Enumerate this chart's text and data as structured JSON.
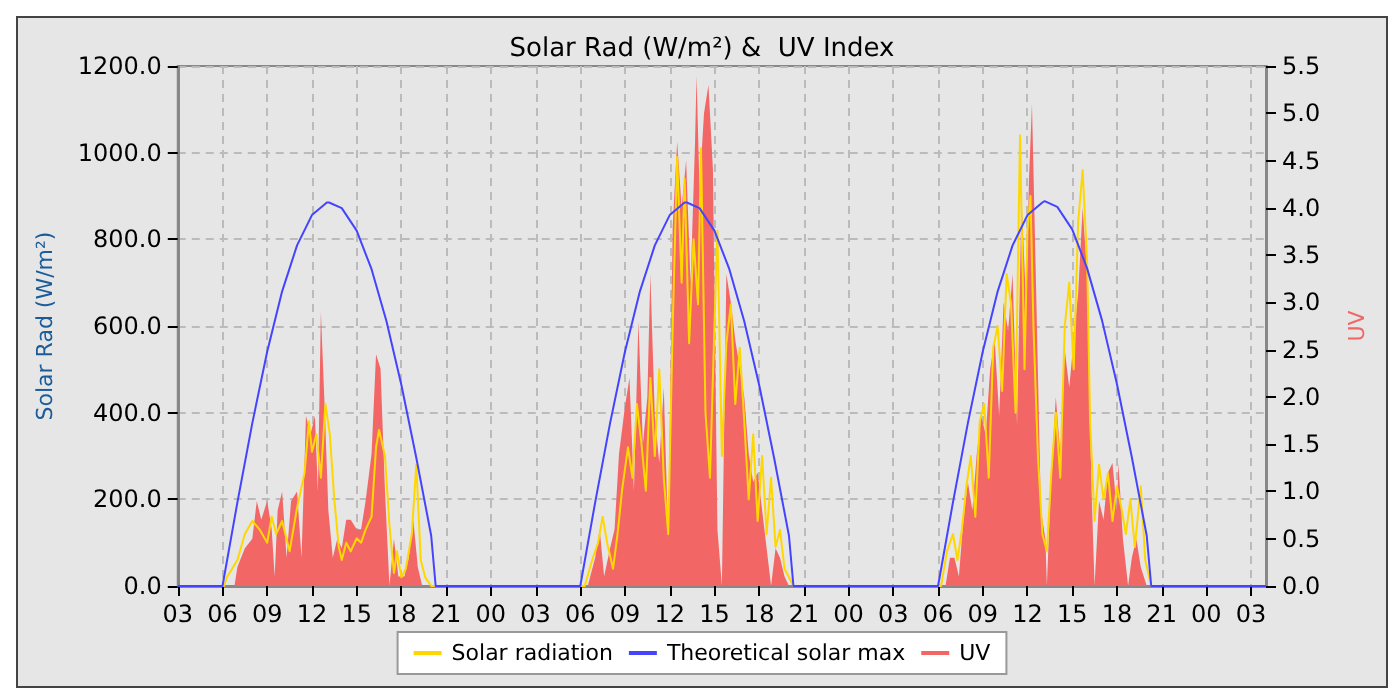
{
  "chart_data": {
    "type": "line",
    "title": "Solar Rad (W/m²) &  UV Index",
    "ylabel": "Solar Rad (W/m²)",
    "y2label": "UV",
    "xlim": [
      3,
      76
    ],
    "xticks": [
      {
        "value": 3,
        "label": "03"
      },
      {
        "value": 6,
        "label": "06"
      },
      {
        "value": 9,
        "label": "09"
      },
      {
        "value": 12,
        "label": "12"
      },
      {
        "value": 15,
        "label": "15"
      },
      {
        "value": 18,
        "label": "18"
      },
      {
        "value": 21,
        "label": "21"
      },
      {
        "value": 24,
        "label": "00"
      },
      {
        "value": 27,
        "label": "03"
      },
      {
        "value": 30,
        "label": "06"
      },
      {
        "value": 33,
        "label": "09"
      },
      {
        "value": 36,
        "label": "12"
      },
      {
        "value": 39,
        "label": "15"
      },
      {
        "value": 42,
        "label": "18"
      },
      {
        "value": 45,
        "label": "21"
      },
      {
        "value": 48,
        "label": "00"
      },
      {
        "value": 51,
        "label": "03"
      },
      {
        "value": 54,
        "label": "06"
      },
      {
        "value": 57,
        "label": "09"
      },
      {
        "value": 60,
        "label": "12"
      },
      {
        "value": 63,
        "label": "15"
      },
      {
        "value": 66,
        "label": "18"
      },
      {
        "value": 69,
        "label": "21"
      },
      {
        "value": 72,
        "label": "00"
      },
      {
        "value": 75,
        "label": "03"
      }
    ],
    "ylim": [
      0,
      1200
    ],
    "yticks": [
      {
        "value": 0,
        "label": "0.0"
      },
      {
        "value": 200,
        "label": "200.0"
      },
      {
        "value": 400,
        "label": "400.0"
      },
      {
        "value": 600,
        "label": "600.0"
      },
      {
        "value": 800,
        "label": "800.0"
      },
      {
        "value": 1000,
        "label": "1000.0"
      },
      {
        "value": 1200,
        "label": "1200.0"
      }
    ],
    "y2lim": [
      0,
      5.5
    ],
    "y2ticks": [
      {
        "value": 0,
        "label": "0.0"
      },
      {
        "value": 0.5,
        "label": "0.5"
      },
      {
        "value": 1,
        "label": "1.0"
      },
      {
        "value": 1.5,
        "label": "1.5"
      },
      {
        "value": 2,
        "label": "2.0"
      },
      {
        "value": 2.5,
        "label": "2.5"
      },
      {
        "value": 3,
        "label": "3.0"
      },
      {
        "value": 3.5,
        "label": "3.5"
      },
      {
        "value": 4,
        "label": "4.0"
      },
      {
        "value": 4.5,
        "label": "4.5"
      },
      {
        "value": 5,
        "label": "5.0"
      },
      {
        "value": 5.5,
        "label": "5.5"
      }
    ],
    "grid": true,
    "legend": "bottom",
    "marker": "none",
    "series": [
      {
        "name": "Solar radiation",
        "color": "#ffd700",
        "x": [
          3,
          6.1,
          6.3,
          7,
          7.5,
          8,
          8.5,
          9,
          9.3,
          9.6,
          10,
          10.5,
          11,
          11.5,
          11.8,
          12,
          12.3,
          12.6,
          12.9,
          13.2,
          13.5,
          13.8,
          14,
          14.3,
          14.6,
          15,
          15.3,
          15.6,
          16,
          16.3,
          16.5,
          16.9,
          17.2,
          17.5,
          17.7,
          18,
          18.3,
          18.7,
          19,
          19.3,
          19.6,
          20,
          30.3,
          30.8,
          31.2,
          31.5,
          31.8,
          32.2,
          32.5,
          32.8,
          33.2,
          33.5,
          33.8,
          34.1,
          34.4,
          34.7,
          35,
          35.3,
          35.6,
          35.9,
          36.2,
          36.5,
          36.8,
          37,
          37.3,
          37.6,
          37.9,
          38.1,
          38.4,
          38.7,
          39,
          39.2,
          39.5,
          39.8,
          40.1,
          40.4,
          40.7,
          41,
          41.3,
          41.6,
          41.9,
          42.2,
          42.5,
          42.8,
          43.1,
          43.4,
          43.7,
          44,
          44.3,
          54.2,
          54.6,
          55,
          55.3,
          55.6,
          55.9,
          56.2,
          56.5,
          56.8,
          57.1,
          57.4,
          57.7,
          58,
          58.3,
          58.6,
          58.9,
          59.2,
          59.5,
          59.8,
          60,
          60.2,
          60.4,
          60.7,
          61,
          61.3,
          61.6,
          61.9,
          62.2,
          62.5,
          62.8,
          63.1,
          63.4,
          63.7,
          64,
          64.2,
          64.5,
          64.8,
          65.1,
          65.4,
          65.7,
          66,
          66.3,
          66.6,
          66.9,
          67.2,
          67.6,
          67.9,
          68.3,
          76
        ],
        "values": [
          0,
          0,
          20,
          60,
          120,
          150,
          130,
          100,
          160,
          120,
          150,
          80,
          180,
          260,
          380,
          310,
          350,
          250,
          420,
          350,
          200,
          90,
          60,
          100,
          80,
          110,
          100,
          130,
          160,
          320,
          360,
          300,
          140,
          30,
          80,
          20,
          40,
          120,
          280,
          60,
          20,
          0,
          0,
          60,
          100,
          160,
          100,
          40,
          120,
          220,
          320,
          250,
          420,
          330,
          220,
          480,
          300,
          500,
          250,
          120,
          600,
          990,
          700,
          940,
          560,
          800,
          650,
          1010,
          400,
          250,
          600,
          820,
          300,
          560,
          650,
          420,
          550,
          380,
          200,
          350,
          150,
          300,
          120,
          250,
          90,
          130,
          40,
          20,
          0,
          0,
          80,
          120,
          60,
          130,
          230,
          300,
          160,
          380,
          420,
          250,
          550,
          600,
          450,
          720,
          650,
          400,
          1040,
          500,
          820,
          900,
          600,
          300,
          120,
          80,
          260,
          400,
          250,
          600,
          700,
          500,
          840,
          960,
          750,
          380,
          150,
          280,
          200,
          260,
          150,
          230,
          180,
          120,
          200,
          90,
          230,
          60,
          0,
          0
        ]
      },
      {
        "name": "Theoretical solar max",
        "color": "#4444ff",
        "x": [
          3,
          6,
          7,
          8,
          9,
          10,
          11,
          12,
          13,
          13.15,
          14,
          15,
          16,
          17,
          18,
          19,
          20,
          20.3,
          30,
          31,
          32,
          33,
          34,
          35,
          36,
          37,
          37.15,
          38,
          39,
          40,
          41,
          42,
          43,
          44,
          44.3,
          54,
          55,
          56,
          57,
          58,
          59,
          60,
          61,
          61.15,
          62,
          63,
          64,
          65,
          66,
          67,
          68,
          68.3,
          76
        ],
        "values": [
          0,
          0,
          193,
          376,
          541,
          680,
          786,
          856,
          885,
          885,
          872,
          820,
          731,
          611,
          464,
          296,
          116,
          0,
          0,
          193,
          376,
          541,
          680,
          786,
          856,
          885,
          885,
          872,
          820,
          731,
          611,
          464,
          296,
          116,
          0,
          0,
          193,
          376,
          541,
          680,
          786,
          856,
          885,
          888,
          875,
          823,
          733,
          613,
          466,
          297,
          116,
          0,
          0
        ]
      },
      {
        "name": "UV",
        "type": "area",
        "axis": "y2",
        "color": "#f26666",
        "x": [
          3,
          6.8,
          7,
          7.5,
          8,
          8.3,
          8.6,
          9,
          9.3,
          9.5,
          9.7,
          10,
          10.3,
          10.6,
          11,
          11.3,
          11.6,
          11.9,
          12.2,
          12.4,
          12.6,
          12.9,
          13.1,
          13.4,
          13.7,
          14,
          14.3,
          14.6,
          15,
          15.3,
          15.6,
          16,
          16.3,
          16.6,
          16.9,
          17.2,
          17.5,
          17.8,
          18.2,
          18.5,
          18.8,
          19.1,
          19.4,
          30.5,
          31,
          31.3,
          31.6,
          32,
          32.3,
          32.6,
          33,
          33.3,
          33.6,
          33.9,
          34.2,
          34.5,
          34.7,
          35,
          35.3,
          35.6,
          35.9,
          36.2,
          36.5,
          36.8,
          37.1,
          37.4,
          37.7,
          37.8,
          38,
          38.3,
          38.6,
          38.9,
          39.2,
          39.5,
          39.8,
          40.1,
          40.4,
          40.7,
          41,
          41.3,
          41.6,
          41.9,
          42.2,
          42.5,
          42.8,
          43.1,
          43.4,
          43.7,
          44,
          54.5,
          54.8,
          55.1,
          55.4,
          55.7,
          56,
          56.3,
          56.6,
          56.9,
          57.2,
          57.5,
          57.8,
          58.1,
          58.4,
          58.7,
          59,
          59.3,
          59.6,
          59.9,
          60.1,
          60.3,
          60.6,
          60.9,
          61.2,
          61.3,
          61.6,
          61.9,
          62.2,
          62.5,
          62.8,
          63.1,
          63.4,
          63.7,
          64,
          64.3,
          64.5,
          64.8,
          65.1,
          65.4,
          65.7,
          66,
          66.1,
          66.4,
          66.75,
          67,
          67.3,
          67.6,
          68,
          76
        ],
        "values": [
          0,
          0,
          0.2,
          0.4,
          0.5,
          0.9,
          0.7,
          0.9,
          0.6,
          0.1,
          0.8,
          1.0,
          0.3,
          0.9,
          1.0,
          0.3,
          1.8,
          1.6,
          1.8,
          1.0,
          2.9,
          1.7,
          0.8,
          0.3,
          0.5,
          0.4,
          0.7,
          0.7,
          0.6,
          0.6,
          0.9,
          1.4,
          2.45,
          2.3,
          1.0,
          0,
          0.5,
          0.1,
          0.1,
          0.3,
          0.7,
          0.2,
          0,
          0,
          0.3,
          0.6,
          0.1,
          0.4,
          0.6,
          1.4,
          1.9,
          2.2,
          1.0,
          2.8,
          1.5,
          2.0,
          3.3,
          1.8,
          1.3,
          2.1,
          0.5,
          3.8,
          4.7,
          4.0,
          4.5,
          3.2,
          4.7,
          5.4,
          4.2,
          5.0,
          5.3,
          4.4,
          0.6,
          0,
          3.3,
          3.0,
          2.6,
          2.3,
          2.0,
          1.4,
          1.1,
          1.2,
          0.8,
          0.4,
          0,
          0.4,
          0.3,
          0.1,
          0,
          0,
          0.3,
          0.3,
          0.1,
          0.7,
          1.1,
          0.8,
          1.4,
          1.8,
          1.6,
          2.3,
          2.6,
          1.8,
          3.0,
          2.7,
          3.3,
          1.7,
          4.1,
          3.0,
          4.3,
          5.1,
          3.0,
          0.8,
          0.5,
          0,
          1.2,
          2.0,
          1.4,
          2.5,
          2.1,
          2.6,
          3.1,
          4.0,
          3.3,
          1.0,
          0,
          0.9,
          0.7,
          1.2,
          1.3,
          0.8,
          1.3,
          0.5,
          0,
          0.3,
          0.5,
          0.2,
          0,
          0
        ]
      }
    ]
  }
}
